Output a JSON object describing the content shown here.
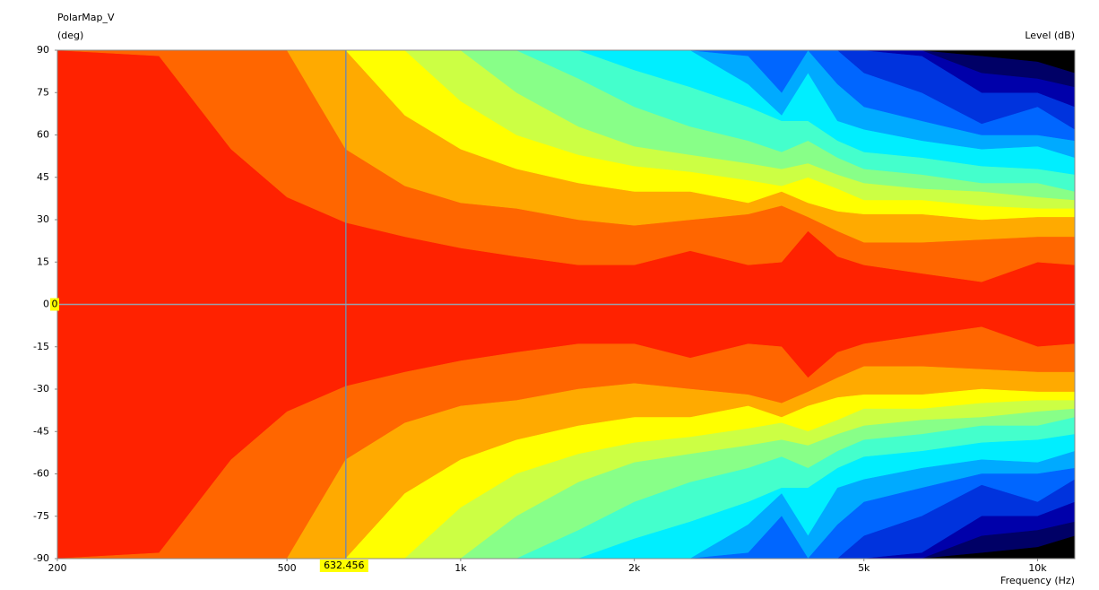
{
  "chart_data": {
    "type": "contour",
    "title": "PolarMap_V",
    "y_label": "(deg)",
    "colorbar_label": "Level (dB)",
    "x_label": "Frequency (Hz)",
    "log_x": true,
    "mirror": true,
    "x": [
      200,
      300,
      400,
      500,
      632,
      800,
      1000,
      1250,
      1600,
      2000,
      2500,
      3150,
      3600,
      4000,
      4500,
      5000,
      6300,
      8000,
      10000,
      11600
    ],
    "series": [
      {
        "color": "#ff2200",
        "values": [
          0,
          0,
          0,
          0,
          0,
          0,
          0,
          0,
          0,
          0,
          0,
          0,
          0,
          0,
          0,
          0,
          0,
          0,
          0,
          0
        ]
      },
      {
        "color": "#ff6600",
        "values": [
          90,
          88,
          55,
          38,
          29,
          24,
          20,
          17,
          14,
          14,
          19,
          14,
          15,
          26,
          17,
          14,
          11,
          8,
          15,
          14
        ]
      },
      {
        "color": "#ffaa00",
        "values": [
          90,
          90,
          90,
          90,
          55,
          42,
          36,
          34,
          30,
          28,
          30,
          32,
          35,
          31,
          26,
          22,
          22,
          23,
          24,
          24
        ]
      },
      {
        "color": "#ffff00",
        "values": [
          90,
          90,
          90,
          90,
          90,
          67,
          55,
          48,
          43,
          40,
          40,
          36,
          40,
          36,
          33,
          32,
          32,
          30,
          31,
          31
        ]
      },
      {
        "color": "#ccff44",
        "values": [
          90,
          90,
          90,
          90,
          90,
          90,
          72,
          60,
          53,
          49,
          47,
          44,
          42,
          45,
          41,
          37,
          37,
          35,
          34,
          34
        ]
      },
      {
        "color": "#88ff88",
        "values": [
          90,
          90,
          90,
          90,
          90,
          90,
          90,
          75,
          63,
          56,
          53,
          50,
          48,
          50,
          46,
          43,
          41,
          40,
          38,
          37
        ]
      },
      {
        "color": "#44ffcc",
        "values": [
          90,
          90,
          90,
          90,
          90,
          90,
          90,
          90,
          80,
          70,
          63,
          58,
          54,
          58,
          52,
          48,
          46,
          43,
          43,
          40
        ]
      },
      {
        "color": "#00eeff",
        "values": [
          90,
          90,
          90,
          90,
          90,
          90,
          90,
          90,
          90,
          83,
          77,
          70,
          65,
          65,
          58,
          54,
          52,
          49,
          48,
          46
        ]
      },
      {
        "color": "#00aaff",
        "values": [
          90,
          90,
          90,
          90,
          90,
          90,
          90,
          90,
          90,
          90,
          90,
          78,
          67,
          82,
          65,
          62,
          58,
          55,
          56,
          52
        ]
      },
      {
        "color": "#0066ff",
        "values": [
          90,
          90,
          90,
          90,
          90,
          90,
          90,
          90,
          90,
          90,
          90,
          88,
          75,
          90,
          78,
          70,
          65,
          60,
          60,
          58
        ]
      },
      {
        "color": "#0033dd",
        "values": [
          90,
          90,
          90,
          90,
          90,
          90,
          90,
          90,
          90,
          90,
          90,
          90,
          90,
          90,
          90,
          82,
          75,
          64,
          70,
          62
        ]
      },
      {
        "color": "#0000aa",
        "values": [
          90,
          90,
          90,
          90,
          90,
          90,
          90,
          90,
          90,
          90,
          90,
          90,
          90,
          90,
          90,
          90,
          88,
          75,
          75,
          70
        ]
      },
      {
        "color": "#000066",
        "values": [
          90,
          90,
          90,
          90,
          90,
          90,
          90,
          90,
          90,
          90,
          90,
          90,
          90,
          90,
          90,
          90,
          90,
          82,
          80,
          77
        ]
      },
      {
        "color": "#000000",
        "values": [
          90,
          90,
          90,
          90,
          90,
          90,
          90,
          90,
          90,
          90,
          90,
          90,
          90,
          90,
          90,
          90,
          90,
          88,
          86,
          82
        ]
      }
    ],
    "xlim": [
      200,
      11600
    ],
    "ylim": [
      -90,
      90
    ],
    "xticks": [
      200,
      500,
      {
        "value": 1000,
        "label": "1k"
      },
      {
        "value": 2000,
        "label": "2k"
      },
      {
        "value": 5000,
        "label": "5k"
      },
      {
        "value": 10000,
        "label": "10k"
      }
    ],
    "yticks": [
      -90,
      -75,
      -60,
      -45,
      -30,
      -15,
      0,
      15,
      30,
      45,
      60,
      75,
      90
    ],
    "cursor": {
      "x": 632.456,
      "y": 0
    }
  }
}
